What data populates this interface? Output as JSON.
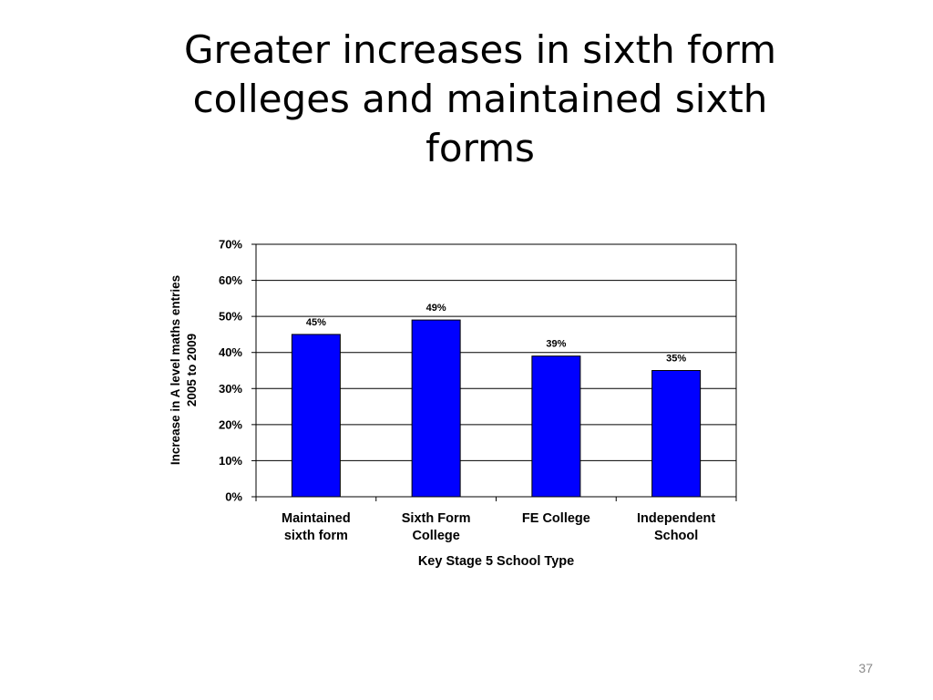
{
  "slide": {
    "title_lines": [
      "Greater increases in sixth form",
      "colleges and maintained sixth",
      "forms"
    ],
    "page_number": "37"
  },
  "chart_data": {
    "type": "bar",
    "categories": [
      [
        "Maintained",
        "sixth form"
      ],
      [
        "Sixth Form",
        "College"
      ],
      [
        "FE College"
      ],
      [
        "Independent",
        "School"
      ]
    ],
    "values": [
      45,
      49,
      39,
      35
    ],
    "data_labels": [
      "45%",
      "49%",
      "39%",
      "35%"
    ],
    "xlabel": "Key Stage 5 School Type",
    "ylabel_lines": [
      "Increase in A level maths entries",
      "2005 to 2009"
    ],
    "ylim": [
      0,
      70
    ],
    "yticks": [
      0,
      10,
      20,
      30,
      40,
      50,
      60,
      70
    ],
    "ytick_labels": [
      "0%",
      "10%",
      "20%",
      "30%",
      "40%",
      "50%",
      "60%",
      "70%"
    ],
    "grid": true,
    "legend": "none",
    "bar_color": "#0000FF"
  }
}
